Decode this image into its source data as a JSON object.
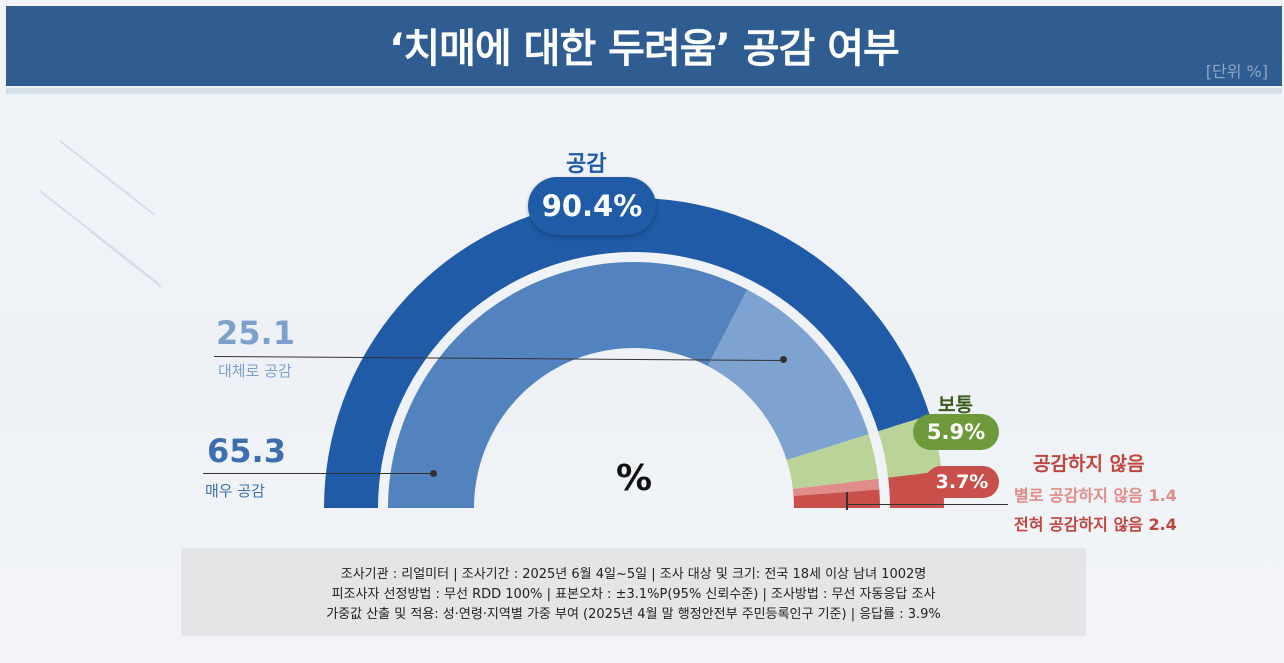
{
  "header": {
    "title": "‘치매에 대한 두려움’ 공감 여부",
    "unit": "[단위 %]"
  },
  "center_symbol": "%",
  "labels": {
    "agree": "공감",
    "agree_total": "90.4%",
    "somewhat_value": "25.1",
    "somewhat_label": "대체로 공감",
    "very_value": "65.3",
    "very_label": "매우 공감",
    "neutral": "보통",
    "neutral_value": "5.9%",
    "disagree": "공감하지 않음",
    "disagree_total": "3.7%",
    "not_much": "별로 공감하지 않음 1.4",
    "not_at_all": "전혀 공감하지 않음 2.4"
  },
  "colors": {
    "header_bg": "#2f5d92",
    "agree_dark": "#1f5ba6",
    "very": "#5283bf",
    "somewhat": "#7fa3d0",
    "neutral": "#b9d398",
    "neutral_pill": "#6f9a3b",
    "not_much": "#e08c89",
    "not_at_all": "#c9504a",
    "disagree_text": "#c0453f"
  },
  "footer": {
    "line1": "조사기관 : 리얼미터  |  조사기간 : 2025년 6월 4일~5일 | 조사 대상 및 크기: 전국 18세 이상 남녀 1002명",
    "line2": "피조사자 선정방법 : 무선 RDD 100% | 표본오차 : ±3.1%P(95%  신뢰수준) | 조사방법 : 무선 자동응답 조사",
    "line3": "가중값 산출 및 적용: 성·연령·지역별  가중 부여 (2025년 4월 말 행정안전부 주민등록인구  기준) | 응답률 : 3.9%"
  },
  "chart_data": {
    "type": "pie",
    "title": "‘치매에 대한 두려움’ 공감 여부",
    "unit": "%",
    "categories": [
      "매우 공감",
      "대체로 공감",
      "보통",
      "별로 공감하지 않음",
      "전혀 공감하지 않음"
    ],
    "values": [
      65.3,
      25.1,
      5.9,
      1.4,
      2.4
    ],
    "groups": [
      {
        "name": "공감",
        "value": 90.4
      },
      {
        "name": "보통",
        "value": 5.9
      },
      {
        "name": "공감하지 않음",
        "value": 3.7
      }
    ]
  }
}
